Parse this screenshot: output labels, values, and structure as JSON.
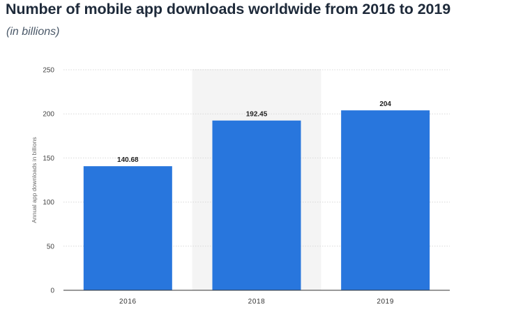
{
  "title": "Number of mobile app downloads worldwide from 2016 to 2019",
  "subtitle": "(in billions)",
  "colors": {
    "bar": "#2876dd",
    "highlight_band": "#f4f4f4",
    "grid": "#d8d8d8",
    "axis": "#333333"
  },
  "chart_data": {
    "type": "bar",
    "categories": [
      "2016",
      "2018",
      "2019"
    ],
    "values": [
      140.68,
      192.45,
      204
    ],
    "value_labels": [
      "140.68",
      "192.45",
      "204"
    ],
    "ylabel": "Annual app downloads in billions",
    "xlabel": "",
    "ylim": [
      0,
      250
    ],
    "yticks": [
      0,
      50,
      100,
      150,
      200,
      250
    ],
    "grid": true,
    "highlighted_category": "2018"
  }
}
